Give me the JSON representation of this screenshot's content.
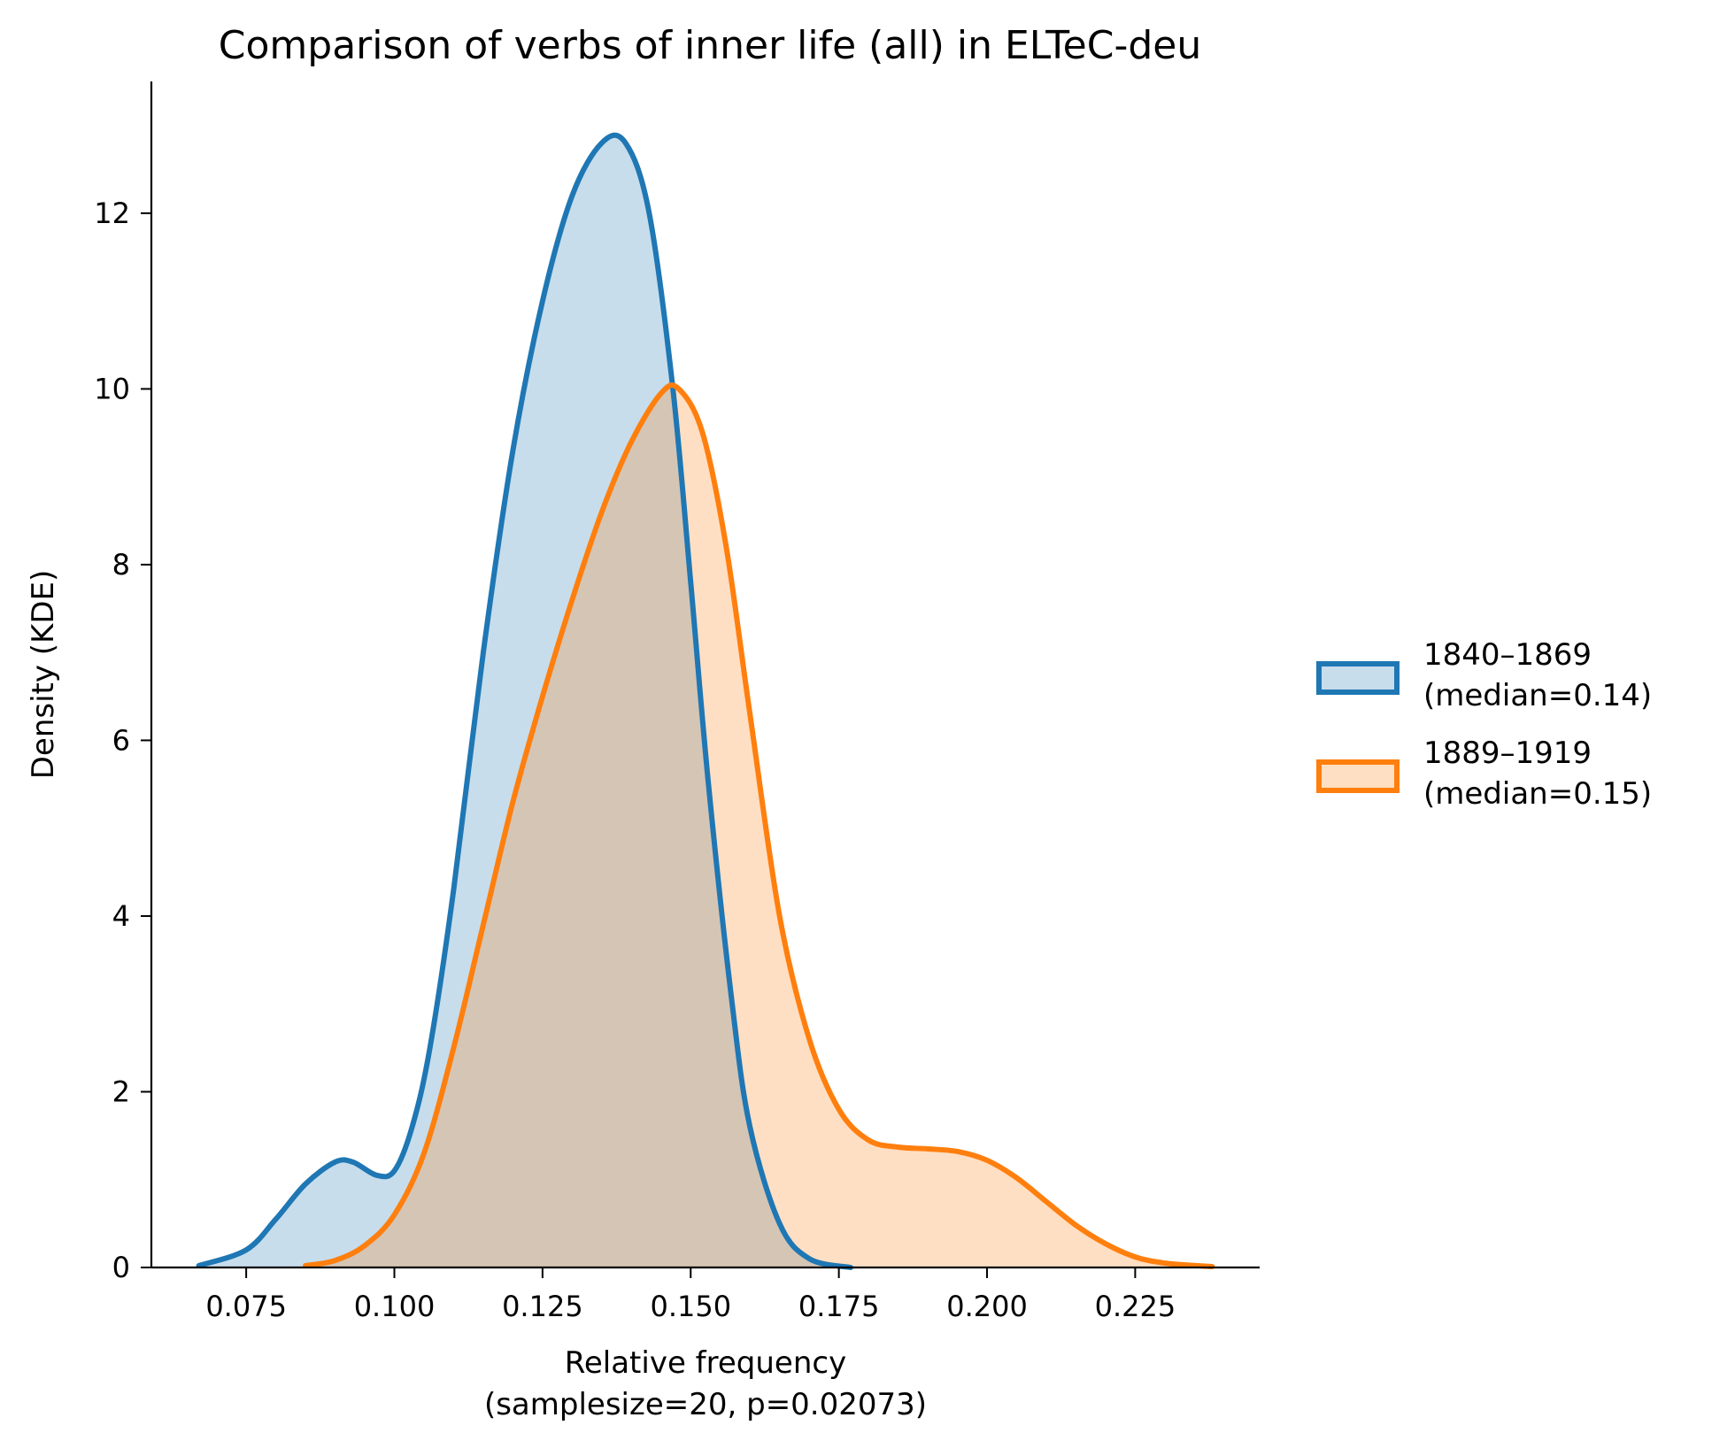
{
  "chart_data": {
    "type": "area",
    "title": "Comparison of verbs of inner life (all) in ELTeC-deu",
    "xlabel": "Relative frequency",
    "xlabel_sub": "(samplesize=20, p=0.02073)",
    "ylabel": "Density (KDE)",
    "xlim": [
      0.059,
      0.246
    ],
    "ylim": [
      0,
      13.5
    ],
    "x_ticks": [
      0.075,
      0.1,
      0.125,
      0.15,
      0.175,
      0.2,
      0.225
    ],
    "x_tick_labels": [
      "0.075",
      "0.100",
      "0.125",
      "0.150",
      "0.175",
      "0.200",
      "0.225"
    ],
    "y_ticks": [
      0,
      2,
      4,
      6,
      8,
      10,
      12
    ],
    "y_tick_labels": [
      "0",
      "2",
      "4",
      "6",
      "8",
      "10",
      "12"
    ],
    "grid": false,
    "legend_position": "right",
    "series": [
      {
        "name": "1840–1869\n(median=0.14)",
        "legend_line1": "1840–1869",
        "legend_line2": "(median=0.14)",
        "color": "#1f77b4",
        "x": [
          0.067,
          0.075,
          0.08,
          0.085,
          0.09,
          0.093,
          0.097,
          0.1,
          0.103,
          0.106,
          0.11,
          0.115,
          0.12,
          0.125,
          0.13,
          0.135,
          0.139,
          0.143,
          0.147,
          0.15,
          0.153,
          0.157,
          0.16,
          0.165,
          0.17,
          0.177
        ],
        "y": [
          0.02,
          0.2,
          0.55,
          0.95,
          1.2,
          1.2,
          1.05,
          1.1,
          1.6,
          2.5,
          4.3,
          7.0,
          9.3,
          11.0,
          12.2,
          12.8,
          12.8,
          12.0,
          10.0,
          7.8,
          5.5,
          3.0,
          1.6,
          0.5,
          0.1,
          0.0
        ]
      },
      {
        "name": "1889–1919\n(median=0.15)",
        "legend_line1": "1889–1919",
        "legend_line2": "(median=0.15)",
        "color": "#ff7f0e",
        "x": [
          0.085,
          0.09,
          0.095,
          0.1,
          0.105,
          0.11,
          0.115,
          0.12,
          0.125,
          0.13,
          0.135,
          0.14,
          0.145,
          0.148,
          0.152,
          0.156,
          0.16,
          0.165,
          0.17,
          0.175,
          0.18,
          0.185,
          0.19,
          0.195,
          0.2,
          0.205,
          0.21,
          0.215,
          0.22,
          0.225,
          0.23,
          0.238
        ],
        "y": [
          0.02,
          0.08,
          0.25,
          0.6,
          1.3,
          2.5,
          3.9,
          5.3,
          6.5,
          7.6,
          8.6,
          9.4,
          9.95,
          10.0,
          9.5,
          8.2,
          6.3,
          4.0,
          2.6,
          1.8,
          1.45,
          1.37,
          1.35,
          1.32,
          1.22,
          1.02,
          0.75,
          0.48,
          0.27,
          0.12,
          0.05,
          0.01
        ]
      }
    ]
  }
}
